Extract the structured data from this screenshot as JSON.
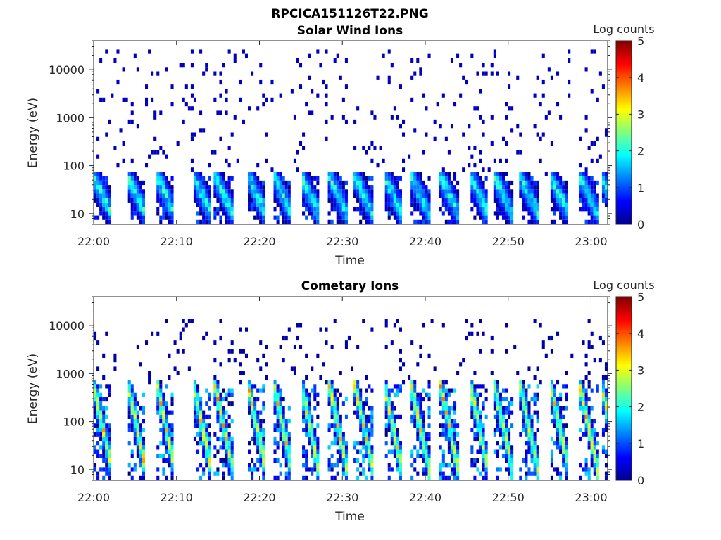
{
  "figure": {
    "title": "RPCICA151126T22.PNG"
  },
  "chart_data": [
    {
      "type": "heatmap",
      "title": "Solar Wind Ions",
      "xlabel": "Time",
      "ylabel": "Energy (eV)",
      "x_range": [
        "22:00",
        "23:02"
      ],
      "x_ticks": [
        "22:00",
        "22:10",
        "22:20",
        "22:30",
        "22:40",
        "22:50",
        "23:00"
      ],
      "y_scale": "log",
      "y_range": [
        6,
        40000
      ],
      "y_ticks": [
        {
          "value": 10,
          "label": "10"
        },
        {
          "value": 100,
          "label": "100"
        },
        {
          "value": 1000,
          "label": "1000"
        },
        {
          "value": 10000,
          "label": "10000"
        }
      ],
      "colorbar": {
        "label": "Log counts",
        "range": [
          0,
          5
        ],
        "ticks": [
          "0",
          "1",
          "2",
          "3",
          "4",
          "5"
        ],
        "colormap": "jet"
      },
      "bursts_start_minutes": [
        0.0,
        4.1,
        7.6,
        12.0,
        14.6,
        18.6,
        21.7,
        25.0,
        28.4,
        31.5,
        35.0,
        38.3,
        41.8,
        45.4,
        48.3,
        51.4,
        55.1,
        58.6,
        61.2
      ],
      "burst_energy_ev": [
        10,
        60
      ],
      "burst_peak_log_counts": 2.5,
      "background_energy_ev": [
        60,
        25000
      ],
      "background_log_counts": 0.3
    },
    {
      "type": "heatmap",
      "title": "Cometary Ions",
      "xlabel": "Time",
      "ylabel": "Energy (eV)",
      "x_range": [
        "22:00",
        "23:02"
      ],
      "x_ticks": [
        "22:00",
        "22:10",
        "22:20",
        "22:30",
        "22:40",
        "22:50",
        "23:00"
      ],
      "y_scale": "log",
      "y_range": [
        6,
        40000
      ],
      "y_ticks": [
        {
          "value": 10,
          "label": "10"
        },
        {
          "value": 100,
          "label": "100"
        },
        {
          "value": 1000,
          "label": "1000"
        },
        {
          "value": 10000,
          "label": "10000"
        }
      ],
      "colorbar": {
        "label": "Log counts",
        "range": [
          0,
          5
        ],
        "ticks": [
          "0",
          "1",
          "2",
          "3",
          "4",
          "5"
        ],
        "colormap": "jet"
      },
      "bursts_start_minutes": [
        0.0,
        4.1,
        7.6,
        12.0,
        14.6,
        18.6,
        21.7,
        25.0,
        28.4,
        31.5,
        35.0,
        38.3,
        41.8,
        45.4,
        48.3,
        51.4,
        55.1,
        58.6,
        61.2
      ],
      "burst_energy_ev": [
        10,
        600
      ],
      "burst_peak_log_counts": 3.9,
      "background_energy_ev": [
        600,
        15000
      ],
      "background_log_counts": 0.2
    }
  ]
}
